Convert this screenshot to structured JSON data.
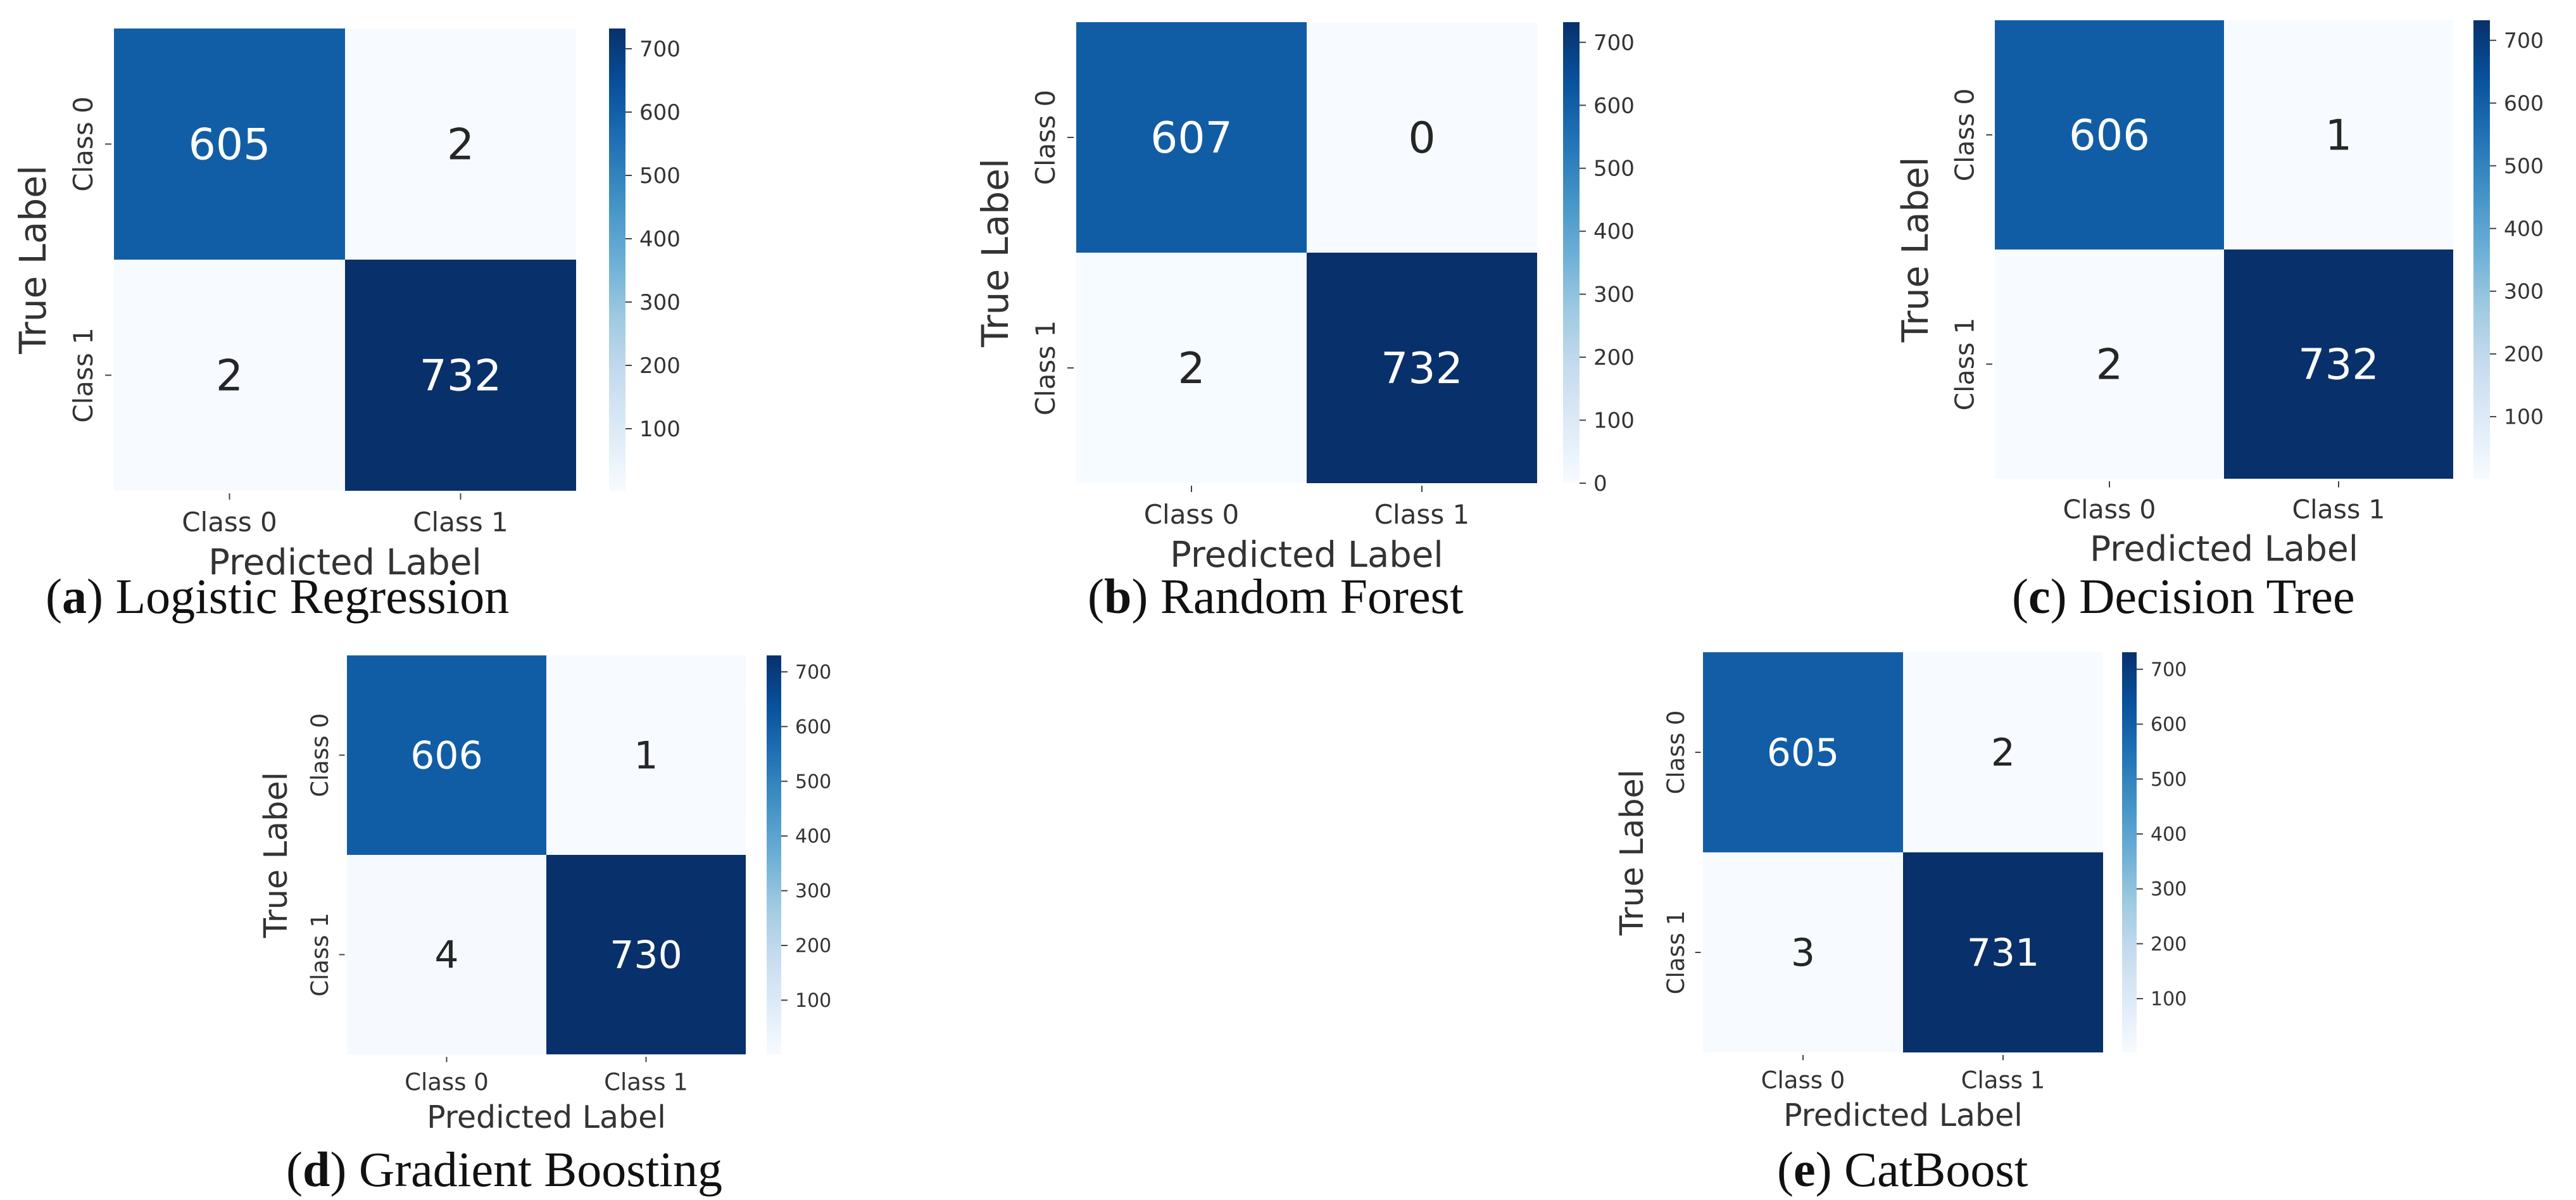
{
  "chart_data": [
    {
      "type": "heatmap",
      "caption_letter": "a",
      "caption_text": "Logistic Regression",
      "xlabel": "Predicted Label",
      "ylabel": "True Label",
      "x_categories": [
        "Class 0",
        "Class 1"
      ],
      "y_categories": [
        "Class 0",
        "Class 1"
      ],
      "values": [
        [
          605,
          2
        ],
        [
          2,
          732
        ]
      ],
      "cell_labels": [
        [
          "605",
          "2"
        ],
        [
          "2",
          "732"
        ]
      ],
      "colorbar": {
        "min": 2,
        "max": 732,
        "ticks": [
          "700",
          "600",
          "500",
          "400",
          "300",
          "200",
          "100"
        ]
      },
      "colormap": "Blues"
    },
    {
      "type": "heatmap",
      "caption_letter": "b",
      "caption_text": "Random Forest",
      "xlabel": "Predicted Label",
      "ylabel": "True Label",
      "x_categories": [
        "Class 0",
        "Class 1"
      ],
      "y_categories": [
        "Class 0",
        "Class 1"
      ],
      "values": [
        [
          607,
          0
        ],
        [
          2,
          732
        ]
      ],
      "cell_labels": [
        [
          "607",
          "0"
        ],
        [
          "2",
          "732"
        ]
      ],
      "colorbar": {
        "min": 0,
        "max": 732,
        "ticks": [
          "700",
          "600",
          "500",
          "400",
          "300",
          "200",
          "100",
          "0"
        ]
      },
      "colormap": "Blues"
    },
    {
      "type": "heatmap",
      "caption_letter": "c",
      "caption_text": "Decision Tree",
      "xlabel": "Predicted Label",
      "ylabel": "True Label",
      "x_categories": [
        "Class 0",
        "Class 1"
      ],
      "y_categories": [
        "Class 0",
        "Class 1"
      ],
      "values": [
        [
          606,
          1
        ],
        [
          2,
          732
        ]
      ],
      "cell_labels": [
        [
          "606",
          "1"
        ],
        [
          "2",
          "732"
        ]
      ],
      "colorbar": {
        "min": 1,
        "max": 732,
        "ticks": [
          "700",
          "600",
          "500",
          "400",
          "300",
          "200",
          "100"
        ]
      },
      "colormap": "Blues"
    },
    {
      "type": "heatmap",
      "caption_letter": "d",
      "caption_text": "Gradient Boosting",
      "xlabel": "Predicted Label",
      "ylabel": "True Label",
      "x_categories": [
        "Class 0",
        "Class 1"
      ],
      "y_categories": [
        "Class 0",
        "Class 1"
      ],
      "values": [
        [
          606,
          1
        ],
        [
          4,
          730
        ]
      ],
      "cell_labels": [
        [
          "606",
          "1"
        ],
        [
          "4",
          "730"
        ]
      ],
      "colorbar": {
        "min": 1,
        "max": 730,
        "ticks": [
          "700",
          "600",
          "500",
          "400",
          "300",
          "200",
          "100"
        ]
      },
      "colormap": "Blues"
    },
    {
      "type": "heatmap",
      "caption_letter": "e",
      "caption_text": "CatBoost",
      "xlabel": "Predicted Label",
      "ylabel": "True Label",
      "x_categories": [
        "Class 0",
        "Class 1"
      ],
      "y_categories": [
        "Class 0",
        "Class 1"
      ],
      "values": [
        [
          605,
          2
        ],
        [
          3,
          731
        ]
      ],
      "cell_labels": [
        [
          "605",
          "2"
        ],
        [
          "3",
          "731"
        ]
      ],
      "colorbar": {
        "min": 2,
        "max": 731,
        "ticks": [
          "700",
          "600",
          "500",
          "400",
          "300",
          "200",
          "100"
        ]
      },
      "colormap": "Blues"
    }
  ]
}
